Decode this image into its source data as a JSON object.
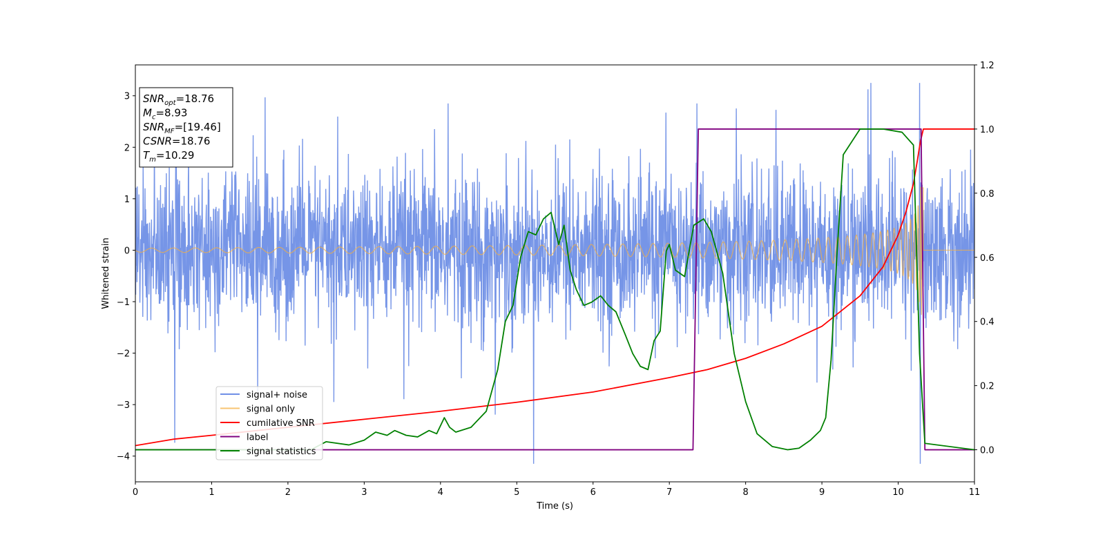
{
  "chart_data": {
    "type": "line",
    "xlabel": "Time (s)",
    "ylabel": "Whitened strain",
    "x_ticks": [
      "0",
      "1",
      "2",
      "3",
      "4",
      "5",
      "6",
      "7",
      "8",
      "9",
      "10",
      "11"
    ],
    "y_ticks": [
      "−4",
      "−3",
      "−2",
      "−1",
      "0",
      "1",
      "2",
      "3"
    ],
    "y2_ticks": [
      "0.0",
      "0.2",
      "0.4",
      "0.6",
      "0.8",
      "1.0",
      "1.2"
    ],
    "xlim": [
      0,
      11
    ],
    "ylim": [
      -4.5,
      3.6
    ],
    "y2lim": [
      -0.1,
      1.2
    ],
    "grid": false,
    "legend_position": "lower-left",
    "info_box": {
      "position": "top-left",
      "lines": [
        {
          "main": "SNR",
          "sub": "opt",
          "value": "=18.76"
        },
        {
          "main": "M",
          "sub": "c",
          "value": "=8.93"
        },
        {
          "main": "SNR",
          "sub": "MF",
          "value": "=[19.46]"
        },
        {
          "main": "CSNR",
          "sub": "",
          "value": "=18.76"
        },
        {
          "main": "T",
          "sub": "m",
          "value": "=10.29"
        }
      ]
    },
    "series": [
      {
        "name": "signal+ noise",
        "axis": "left",
        "color": "#6f8fe6",
        "kind": "noise",
        "approx_std": 0.75,
        "approx_range": [
          -4.15,
          3.25
        ],
        "notable_points": [
          {
            "x": 1.7,
            "y": 2.97
          },
          {
            "x": 10.28,
            "y": 3.25
          },
          {
            "x": 10.29,
            "y": -4.15
          },
          {
            "x": 2.6,
            "y": -2.95
          },
          {
            "x": 4.1,
            "y": 2.85
          },
          {
            "x": 7.36,
            "y": 2.85
          }
        ]
      },
      {
        "name": "signal only",
        "axis": "left",
        "color": "#f5b041",
        "kind": "chirp",
        "start_amplitude": 0.04,
        "merger_time": 10.29,
        "merger_amplitude": 1.15,
        "end_time": 10.33
      },
      {
        "name": "cumilative SNR",
        "axis": "right",
        "color": "#ff0000",
        "x": [
          0,
          0.5,
          1,
          2,
          3,
          4,
          5,
          6,
          7,
          7.5,
          8,
          8.5,
          9,
          9.5,
          9.8,
          10,
          10.1,
          10.2,
          10.25,
          10.29,
          10.33,
          11
        ],
        "values": [
          0.013,
          0.033,
          0.045,
          0.07,
          0.095,
          0.12,
          0.148,
          0.18,
          0.225,
          0.25,
          0.285,
          0.33,
          0.385,
          0.48,
          0.57,
          0.67,
          0.74,
          0.83,
          0.9,
          0.96,
          1.0,
          1.0
        ]
      },
      {
        "name": "label",
        "axis": "right",
        "color": "#800080",
        "x": [
          0,
          7.31,
          7.38,
          10.3,
          10.35,
          11
        ],
        "values": [
          0.0,
          0.0,
          1.0,
          1.0,
          0.0,
          0.0
        ]
      },
      {
        "name": "signal statistics",
        "axis": "right",
        "color": "#008000",
        "x": [
          0,
          2.3,
          2.5,
          2.8,
          3.0,
          3.15,
          3.3,
          3.4,
          3.55,
          3.7,
          3.85,
          3.95,
          4.05,
          4.12,
          4.2,
          4.4,
          4.6,
          4.75,
          4.85,
          4.95,
          5.05,
          5.15,
          5.25,
          5.35,
          5.45,
          5.55,
          5.62,
          5.7,
          5.78,
          5.88,
          5.98,
          6.1,
          6.2,
          6.3,
          6.42,
          6.52,
          6.62,
          6.72,
          6.8,
          6.88,
          6.96,
          7.0,
          7.08,
          7.2,
          7.32,
          7.45,
          7.55,
          7.7,
          7.85,
          8.0,
          8.15,
          8.35,
          8.55,
          8.7,
          8.85,
          8.98,
          9.05,
          9.12,
          9.2,
          9.28,
          9.5,
          9.8,
          10.05,
          10.2,
          10.28,
          10.35,
          11
        ],
        "values": [
          0.0,
          0.0,
          0.025,
          0.015,
          0.03,
          0.055,
          0.045,
          0.06,
          0.045,
          0.04,
          0.06,
          0.05,
          0.1,
          0.07,
          0.055,
          0.07,
          0.12,
          0.25,
          0.4,
          0.45,
          0.6,
          0.68,
          0.67,
          0.72,
          0.74,
          0.64,
          0.7,
          0.56,
          0.5,
          0.45,
          0.46,
          0.48,
          0.45,
          0.43,
          0.36,
          0.3,
          0.26,
          0.25,
          0.34,
          0.37,
          0.62,
          0.64,
          0.56,
          0.54,
          0.7,
          0.72,
          0.68,
          0.55,
          0.3,
          0.15,
          0.05,
          0.01,
          0.0,
          0.005,
          0.03,
          0.06,
          0.1,
          0.28,
          0.62,
          0.92,
          1.0,
          1.0,
          0.99,
          0.95,
          0.3,
          0.02,
          0.0
        ]
      }
    ]
  }
}
